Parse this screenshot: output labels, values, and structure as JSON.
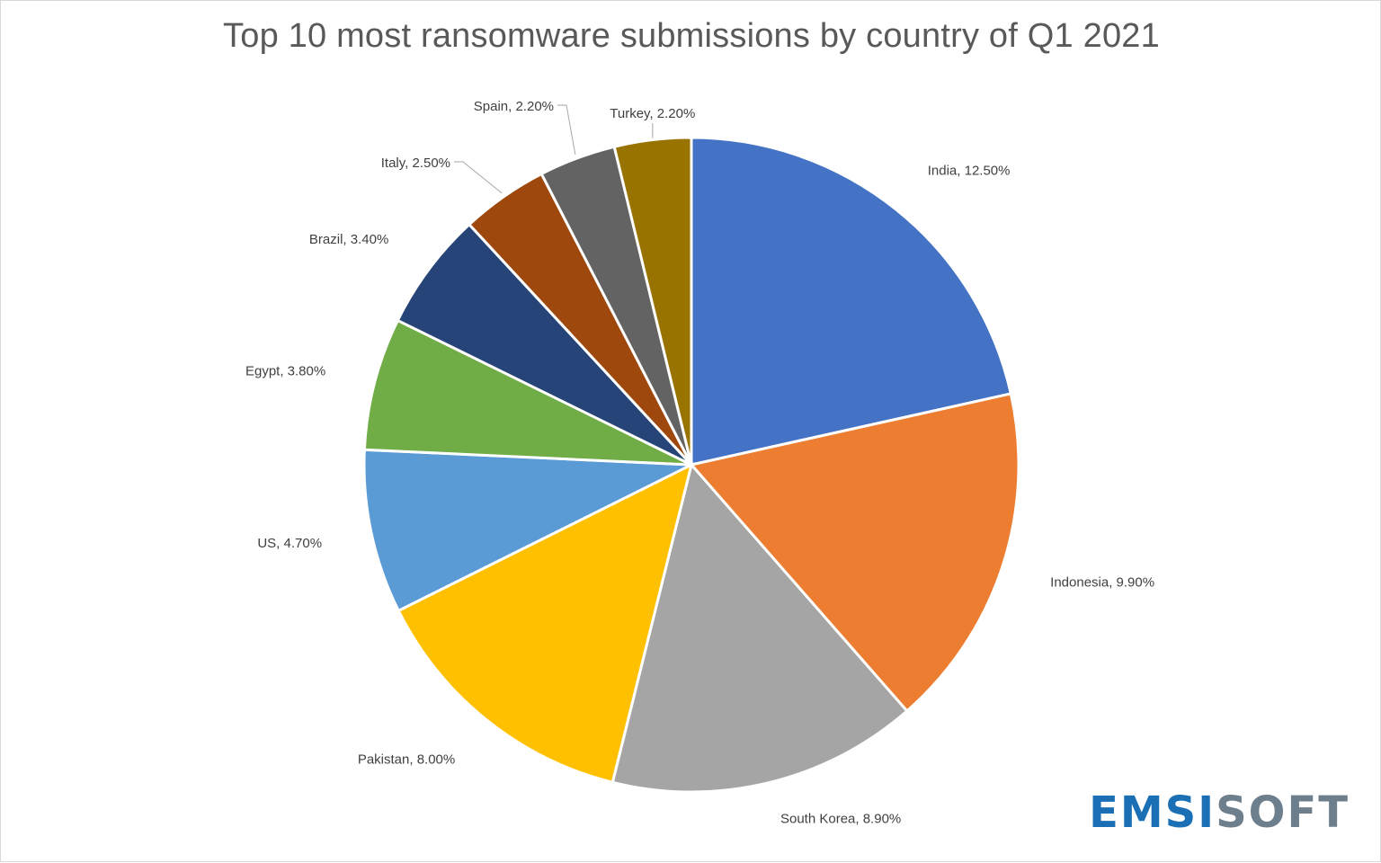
{
  "chart_data": {
    "type": "pie",
    "title": "Top 10 most ransomware submissions by country of Q1 2021",
    "unit": "%",
    "slices": [
      {
        "label": "India",
        "value": 12.5,
        "display": "12.50%",
        "color": "#4472C4"
      },
      {
        "label": "Indonesia",
        "value": 9.9,
        "display": "9.90%",
        "color": "#ED7D31"
      },
      {
        "label": "South Korea",
        "value": 8.9,
        "display": "8.90%",
        "color": "#A5A5A5"
      },
      {
        "label": "Pakistan",
        "value": 8.0,
        "display": "8.00%",
        "color": "#FFC000"
      },
      {
        "label": "US",
        "value": 4.7,
        "display": "4.70%",
        "color": "#5B9BD5"
      },
      {
        "label": "Egypt",
        "value": 3.8,
        "display": "3.80%",
        "color": "#70AD47"
      },
      {
        "label": "Brazil",
        "value": 3.4,
        "display": "3.40%",
        "color": "#264478"
      },
      {
        "label": "Italy",
        "value": 2.5,
        "display": "2.50%",
        "color": "#9E480E"
      },
      {
        "label": "Spain",
        "value": 2.2,
        "display": "2.20%",
        "color": "#636363"
      },
      {
        "label": "Turkey",
        "value": 2.2,
        "display": "2.20%",
        "color": "#997300"
      }
    ],
    "legend": "none",
    "data_labels": "outside"
  },
  "logo": {
    "part1": "EMSI",
    "part2": "SOFT"
  }
}
